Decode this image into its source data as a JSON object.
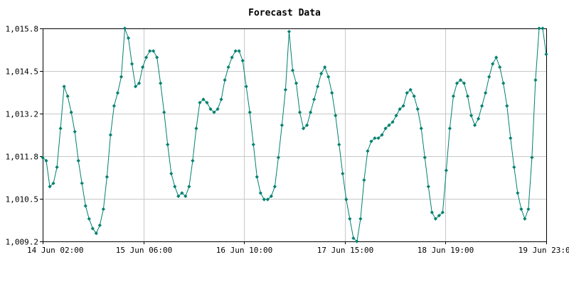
{
  "chart_data": {
    "type": "line",
    "title": "Forecast Data",
    "xlabel": "",
    "ylabel": "",
    "x_ticks": [
      "14 Jun 02:00",
      "15 Jun 06:00",
      "16 Jun 10:00",
      "17 Jun 15:00",
      "18 Jun 19:00",
      "19 Jun 23:00"
    ],
    "y_ticks": [
      "1,009.2",
      "1,010.5",
      "1,011.8",
      "1,013.2",
      "1,014.5",
      "1,015.8"
    ],
    "ylim": [
      1009.2,
      1015.8
    ],
    "x_range_hours": [
      0,
      141
    ],
    "grid": true,
    "series": [
      {
        "color": "#00806e",
        "marker": "diamond",
        "points": [
          [
            0,
            1011.8
          ],
          [
            1,
            1011.7
          ],
          [
            2,
            1010.9
          ],
          [
            3,
            1011.0
          ],
          [
            4,
            1011.5
          ],
          [
            5,
            1012.7
          ],
          [
            6,
            1014.0
          ],
          [
            7,
            1013.7
          ],
          [
            8,
            1013.2
          ],
          [
            9,
            1012.6
          ],
          [
            10,
            1011.7
          ],
          [
            11,
            1011.0
          ],
          [
            12,
            1010.3
          ],
          [
            13,
            1009.9
          ],
          [
            14,
            1009.6
          ],
          [
            15,
            1009.45
          ],
          [
            16,
            1009.7
          ],
          [
            17,
            1010.2
          ],
          [
            18,
            1011.2
          ],
          [
            19,
            1012.5
          ],
          [
            20,
            1013.4
          ],
          [
            21,
            1013.8
          ],
          [
            22,
            1014.3
          ],
          [
            23,
            1015.8
          ],
          [
            24,
            1015.5
          ],
          [
            25,
            1014.7
          ],
          [
            26,
            1014.0
          ],
          [
            27,
            1014.1
          ],
          [
            28,
            1014.6
          ],
          [
            29,
            1014.9
          ],
          [
            30,
            1015.1
          ],
          [
            31,
            1015.1
          ],
          [
            32,
            1014.9
          ],
          [
            33,
            1014.1
          ],
          [
            34,
            1013.2
          ],
          [
            35,
            1012.2
          ],
          [
            36,
            1011.3
          ],
          [
            37,
            1010.9
          ],
          [
            38,
            1010.6
          ],
          [
            39,
            1010.7
          ],
          [
            40,
            1010.6
          ],
          [
            41,
            1010.9
          ],
          [
            42,
            1011.7
          ],
          [
            43,
            1012.7
          ],
          [
            44,
            1013.5
          ],
          [
            45,
            1013.6
          ],
          [
            46,
            1013.5
          ],
          [
            47,
            1013.3
          ],
          [
            48,
            1013.2
          ],
          [
            49,
            1013.3
          ],
          [
            50,
            1013.6
          ],
          [
            51,
            1014.2
          ],
          [
            52,
            1014.6
          ],
          [
            53,
            1014.9
          ],
          [
            54,
            1015.1
          ],
          [
            55,
            1015.1
          ],
          [
            56,
            1014.8
          ],
          [
            57,
            1014.0
          ],
          [
            58,
            1013.2
          ],
          [
            59,
            1012.2
          ],
          [
            60,
            1011.2
          ],
          [
            61,
            1010.7
          ],
          [
            62,
            1010.5
          ],
          [
            63,
            1010.5
          ],
          [
            64,
            1010.6
          ],
          [
            65,
            1010.9
          ],
          [
            66,
            1011.8
          ],
          [
            67,
            1012.8
          ],
          [
            68,
            1013.9
          ],
          [
            69,
            1015.7
          ],
          [
            70,
            1014.5
          ],
          [
            71,
            1014.1
          ],
          [
            72,
            1013.2
          ],
          [
            73,
            1012.7
          ],
          [
            74,
            1012.8
          ],
          [
            75,
            1013.2
          ],
          [
            76,
            1013.6
          ],
          [
            77,
            1014.0
          ],
          [
            78,
            1014.4
          ],
          [
            79,
            1014.6
          ],
          [
            80,
            1014.3
          ],
          [
            81,
            1013.8
          ],
          [
            82,
            1013.1
          ],
          [
            83,
            1012.2
          ],
          [
            84,
            1011.3
          ],
          [
            85,
            1010.5
          ],
          [
            86,
            1009.9
          ],
          [
            87,
            1009.3
          ],
          [
            88,
            1009.2
          ],
          [
            89,
            1009.9
          ],
          [
            90,
            1011.1
          ],
          [
            91,
            1012.0
          ],
          [
            92,
            1012.3
          ],
          [
            93,
            1012.4
          ],
          [
            94,
            1012.4
          ],
          [
            95,
            1012.5
          ],
          [
            96,
            1012.7
          ],
          [
            97,
            1012.8
          ],
          [
            98,
            1012.9
          ],
          [
            99,
            1013.1
          ],
          [
            100,
            1013.3
          ],
          [
            101,
            1013.4
          ],
          [
            102,
            1013.8
          ],
          [
            103,
            1013.9
          ],
          [
            104,
            1013.7
          ],
          [
            105,
            1013.3
          ],
          [
            106,
            1012.7
          ],
          [
            107,
            1011.8
          ],
          [
            108,
            1010.9
          ],
          [
            109,
            1010.1
          ],
          [
            110,
            1009.9
          ],
          [
            111,
            1010.0
          ],
          [
            112,
            1010.1
          ],
          [
            113,
            1011.4
          ],
          [
            114,
            1012.7
          ],
          [
            115,
            1013.7
          ],
          [
            116,
            1014.1
          ],
          [
            117,
            1014.2
          ],
          [
            118,
            1014.1
          ],
          [
            119,
            1013.7
          ],
          [
            120,
            1013.1
          ],
          [
            121,
            1012.8
          ],
          [
            122,
            1013.0
          ],
          [
            123,
            1013.4
          ],
          [
            124,
            1013.8
          ],
          [
            125,
            1014.3
          ],
          [
            126,
            1014.7
          ],
          [
            127,
            1014.9
          ],
          [
            128,
            1014.6
          ],
          [
            129,
            1014.1
          ],
          [
            130,
            1013.4
          ],
          [
            131,
            1012.4
          ],
          [
            132,
            1011.5
          ],
          [
            133,
            1010.7
          ],
          [
            134,
            1010.2
          ],
          [
            135,
            1009.9
          ],
          [
            136,
            1010.2
          ],
          [
            137,
            1011.8
          ],
          [
            138,
            1014.2
          ],
          [
            139,
            1015.8
          ],
          [
            140,
            1015.8
          ],
          [
            141,
            1015.0
          ]
        ]
      }
    ]
  }
}
